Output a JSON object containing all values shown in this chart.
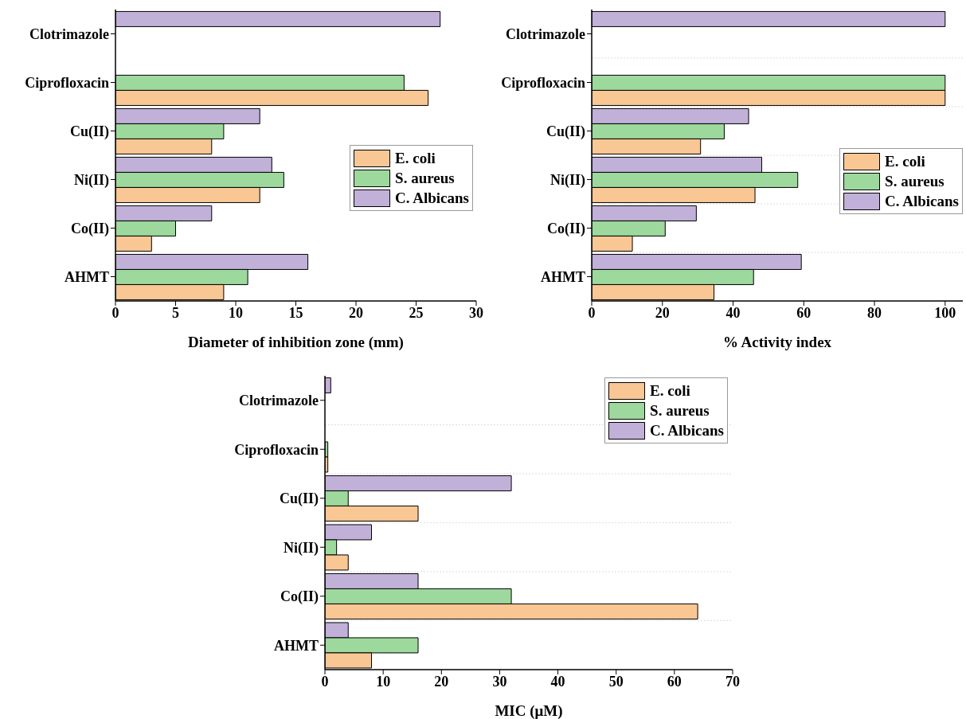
{
  "chart_data": [
    {
      "type": "bar",
      "orientation": "horizontal",
      "xlabel": "Diameter of inhibition zone (mm)",
      "categories": [
        "Clotrimazole",
        "Ciprofloxacin",
        "Cu(II)",
        "Ni(II)",
        "Co(II)",
        "AHMT"
      ],
      "xlim": [
        0,
        30
      ],
      "xticks": [
        0,
        5,
        10,
        15,
        20,
        25,
        30
      ],
      "legend": "right",
      "series": [
        {
          "name": "E. coli",
          "color": "#f9c794",
          "values": [
            null,
            26,
            8,
            12,
            3,
            9
          ]
        },
        {
          "name": "S. aureus",
          "color": "#9dd89c",
          "values": [
            null,
            24,
            9,
            14,
            5,
            11
          ]
        },
        {
          "name": "C. Albicans",
          "color": "#c1b0d8",
          "values": [
            27,
            null,
            12,
            13,
            8,
            16
          ]
        }
      ]
    },
    {
      "type": "bar",
      "orientation": "horizontal",
      "xlabel": "% Activity index",
      "categories": [
        "Clotrimazole",
        "Ciprofloxacin",
        "Cu(II)",
        "Ni(II)",
        "Co(II)",
        "AHMT"
      ],
      "xlim": [
        0,
        105
      ],
      "xticks": [
        0,
        20,
        40,
        60,
        80,
        100
      ],
      "legend": "right",
      "grid": "y",
      "series": [
        {
          "name": "E. coli",
          "color": "#f9c794",
          "values": [
            null,
            100,
            30.8,
            46.2,
            11.5,
            34.6
          ]
        },
        {
          "name": "S. aureus",
          "color": "#9dd89c",
          "values": [
            null,
            100,
            37.5,
            58.3,
            20.8,
            45.8
          ]
        },
        {
          "name": "C. Albicans",
          "color": "#c1b0d8",
          "values": [
            100,
            null,
            44.4,
            48.1,
            29.6,
            59.3
          ]
        }
      ]
    },
    {
      "type": "bar",
      "orientation": "horizontal",
      "xlabel": "MIC (μM)",
      "categories": [
        "Clotrimazole",
        "Ciprofloxacin",
        "Cu(II)",
        "Ni(II)",
        "Co(II)",
        "AHMT"
      ],
      "xlim": [
        0,
        70
      ],
      "xticks": [
        0,
        10,
        20,
        30,
        40,
        50,
        60,
        70
      ],
      "legend": "top right",
      "grid": "y",
      "series": [
        {
          "name": "E. coli",
          "color": "#f9c794",
          "values": [
            null,
            0.5,
            16,
            4,
            64,
            8
          ]
        },
        {
          "name": "S. aureus",
          "color": "#9dd89c",
          "values": [
            null,
            0.5,
            4,
            2,
            32,
            16
          ]
        },
        {
          "name": "C. Albicans",
          "color": "#c1b0d8",
          "values": [
            1,
            null,
            32,
            8,
            16,
            4
          ]
        }
      ]
    }
  ]
}
